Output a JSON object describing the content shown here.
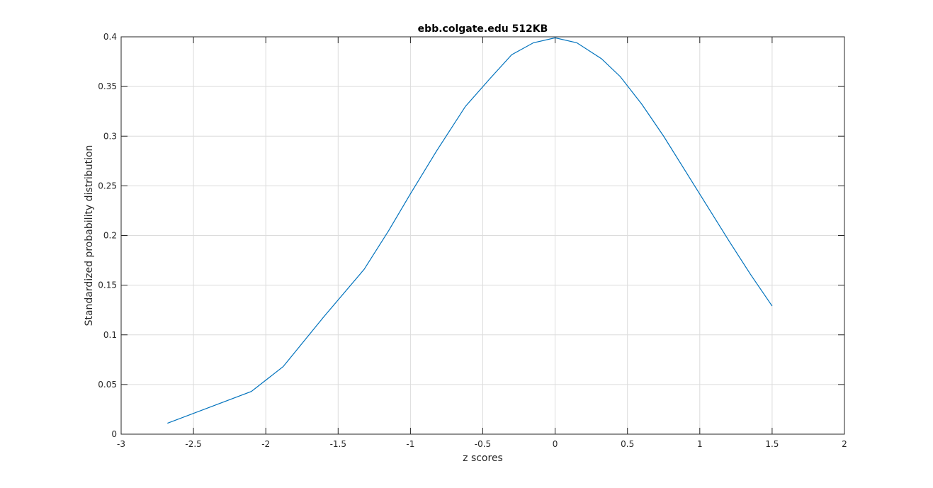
{
  "chart_data": {
    "type": "line",
    "title": "ebb.colgate.edu 512KB",
    "xlabel": "z scores",
    "ylabel": "Standardized probability distribution",
    "xlim": [
      -3,
      2
    ],
    "ylim": [
      0,
      0.4
    ],
    "x_ticks": [
      -3,
      -2.5,
      -2,
      -1.5,
      -1,
      -0.5,
      0,
      0.5,
      1,
      1.5,
      2
    ],
    "y_ticks": [
      0,
      0.05,
      0.1,
      0.15,
      0.2,
      0.25,
      0.3,
      0.35,
      0.4
    ],
    "x_tick_labels": [
      "-3",
      "-2.5",
      "-2",
      "-1.5",
      "-1",
      "-0.5",
      "0",
      "0.5",
      "1",
      "1.5",
      "2"
    ],
    "y_tick_labels": [
      "0",
      "0.05",
      "0.1",
      "0.15",
      "0.2",
      "0.25",
      "0.3",
      "0.35",
      "0.4"
    ],
    "grid": true,
    "series": [
      {
        "color": "#0072bd",
        "x": [
          -2.68,
          -2.1,
          -1.88,
          -1.6,
          -1.32,
          -1.15,
          -1.0,
          -0.82,
          -0.62,
          -0.45,
          -0.3,
          -0.15,
          0.0,
          0.15,
          0.32,
          0.45,
          0.6,
          0.75,
          0.9,
          1.05,
          1.2,
          1.35,
          1.5
        ],
        "y": [
          0.011,
          0.043,
          0.068,
          0.118,
          0.166,
          0.205,
          0.242,
          0.285,
          0.33,
          0.358,
          0.382,
          0.394,
          0.399,
          0.394,
          0.378,
          0.36,
          0.332,
          0.3,
          0.265,
          0.23,
          0.195,
          0.161,
          0.129
        ]
      }
    ]
  }
}
